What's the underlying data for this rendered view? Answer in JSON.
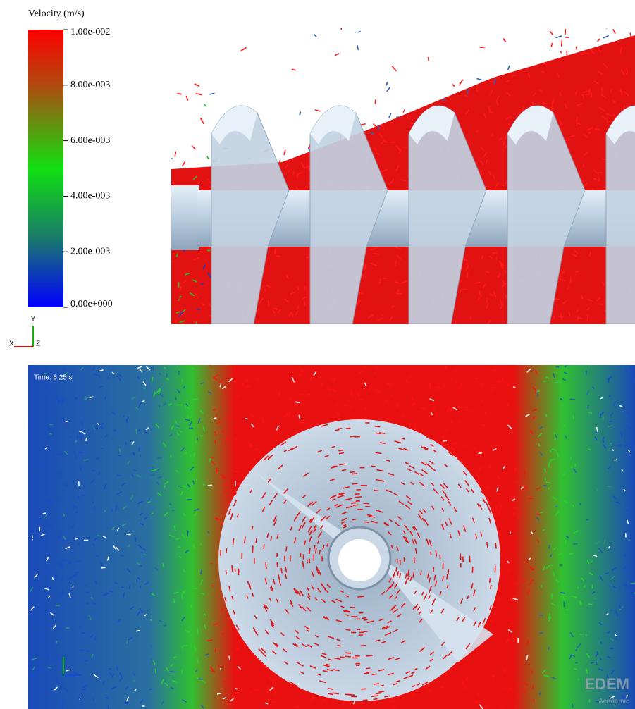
{
  "legend": {
    "title": "Velocity (m/s)",
    "range": [
      0,
      0.01
    ],
    "ticks": [
      {
        "value": 0.01,
        "label": "1.00e-002"
      },
      {
        "value": 0.008,
        "label": "8.00e-003"
      },
      {
        "value": 0.006,
        "label": "6.00e-003"
      },
      {
        "value": 0.004,
        "label": "4.00e-003"
      },
      {
        "value": 0.002,
        "label": "2.00e-003"
      },
      {
        "value": 0,
        "label": "0.00e+000"
      }
    ]
  },
  "triad": {
    "y": "Y",
    "x": "X",
    "z": "Z"
  },
  "viewport": {
    "time": "Time: 6.25 s"
  },
  "watermark": {
    "brand": "EDEM",
    "edition": "Academic"
  }
}
